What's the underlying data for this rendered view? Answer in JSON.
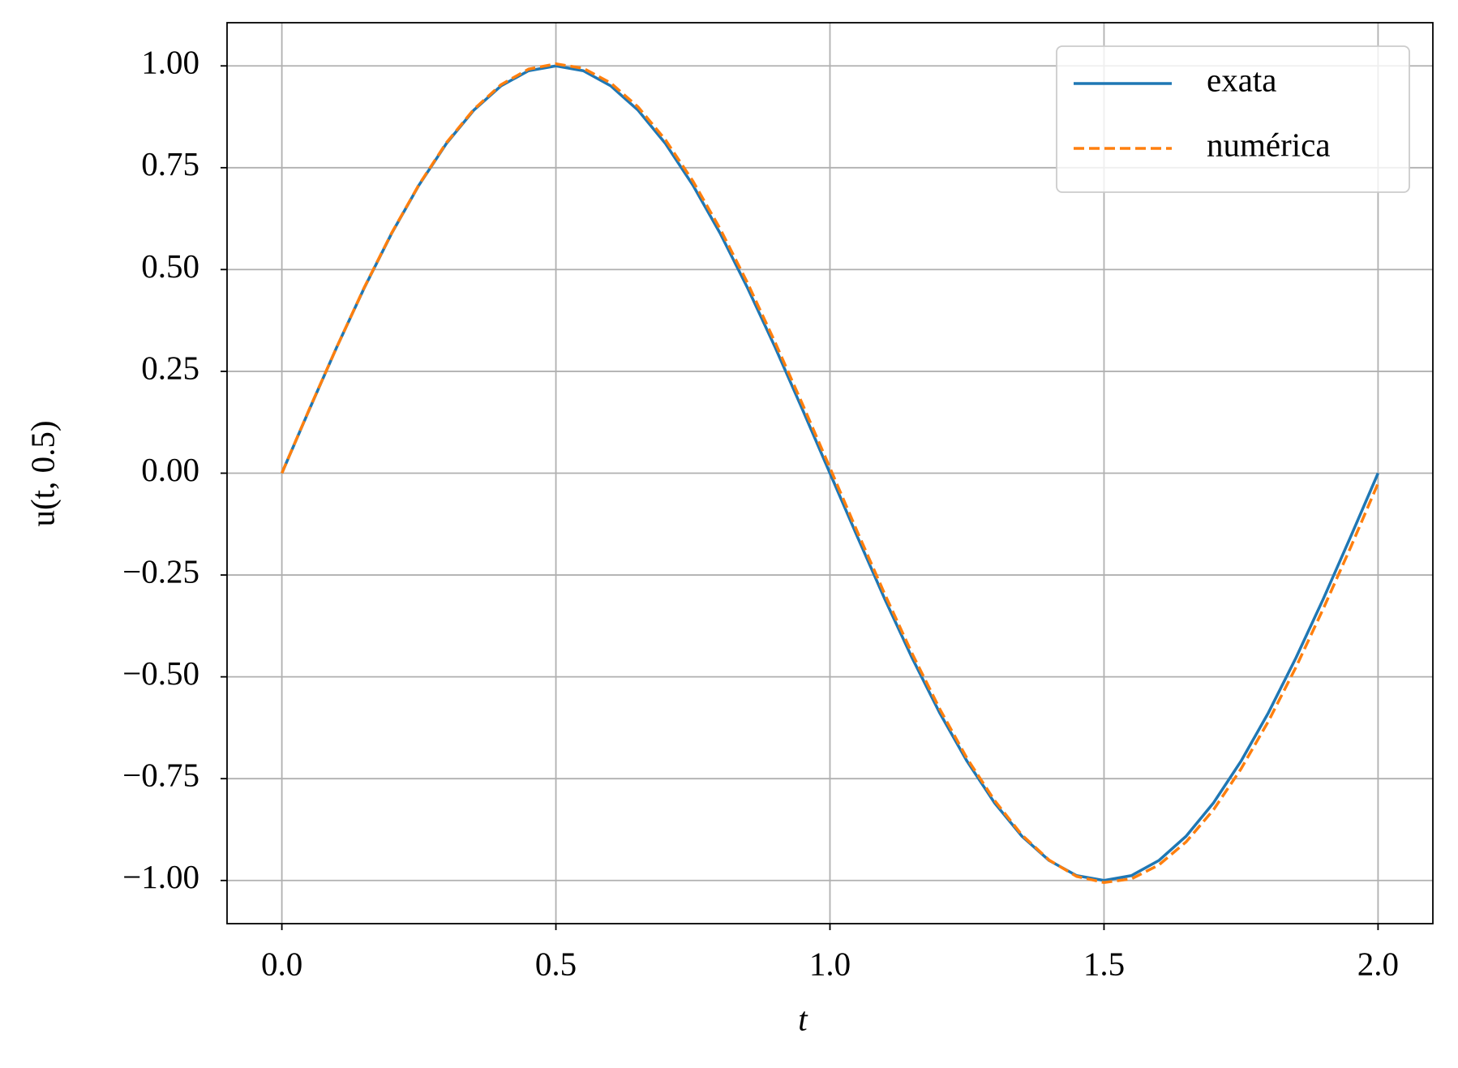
{
  "chart_data": {
    "type": "line",
    "xlabel": "t",
    "ylabel": "u(t, 0.5)",
    "x": [
      0,
      0.05,
      0.1,
      0.15,
      0.2,
      0.25,
      0.3,
      0.35,
      0.4,
      0.45,
      0.5,
      0.55,
      0.6,
      0.65,
      0.7,
      0.75,
      0.8,
      0.85,
      0.9,
      0.95,
      1.0,
      1.05,
      1.1,
      1.15,
      1.2,
      1.25,
      1.3,
      1.35,
      1.4,
      1.45,
      1.5,
      1.55,
      1.6,
      1.65,
      1.7,
      1.75,
      1.8,
      1.85,
      1.9,
      1.95,
      2.0
    ],
    "series": [
      {
        "name": "exata",
        "color": "#1f77b4",
        "dash": false,
        "values": [
          0,
          0.156,
          0.309,
          0.454,
          0.588,
          0.707,
          0.809,
          0.891,
          0.951,
          0.988,
          1.0,
          0.988,
          0.951,
          0.891,
          0.809,
          0.707,
          0.588,
          0.454,
          0.309,
          0.156,
          0,
          -0.156,
          -0.309,
          -0.454,
          -0.588,
          -0.707,
          -0.809,
          -0.891,
          -0.951,
          -0.988,
          -1.0,
          -0.988,
          -0.951,
          -0.891,
          -0.809,
          -0.707,
          -0.588,
          -0.454,
          -0.309,
          -0.156,
          0
        ]
      },
      {
        "name": "numérica",
        "color": "#ff7f0e",
        "dash": true,
        "values": [
          0,
          0.157,
          0.309,
          0.455,
          0.589,
          0.708,
          0.811,
          0.893,
          0.954,
          0.992,
          1.005,
          0.994,
          0.958,
          0.899,
          0.818,
          0.717,
          0.599,
          0.466,
          0.321,
          0.169,
          0.013,
          -0.144,
          -0.297,
          -0.443,
          -0.578,
          -0.7,
          -0.803,
          -0.888,
          -0.95,
          -0.99,
          -1.005,
          -0.996,
          -0.962,
          -0.905,
          -0.826,
          -0.726,
          -0.609,
          -0.477,
          -0.333,
          -0.182,
          -0.025
        ]
      }
    ],
    "xlim": [
      -0.1,
      2.1
    ],
    "ylim": [
      -1.106,
      1.106
    ],
    "xticks": [
      {
        "value": 0,
        "label": "0.0"
      },
      {
        "value": 0.5,
        "label": "0.5"
      },
      {
        "value": 1,
        "label": "1.0"
      },
      {
        "value": 1.5,
        "label": "1.5"
      },
      {
        "value": 2,
        "label": "2.0"
      }
    ],
    "yticks": [
      {
        "value": -1,
        "label": "−1.00"
      },
      {
        "value": -0.75,
        "label": "−0.75"
      },
      {
        "value": -0.5,
        "label": "−0.50"
      },
      {
        "value": -0.25,
        "label": "−0.25"
      },
      {
        "value": 0,
        "label": "0.00"
      },
      {
        "value": 0.25,
        "label": "0.25"
      },
      {
        "value": 0.5,
        "label": "0.50"
      },
      {
        "value": 0.75,
        "label": "0.75"
      },
      {
        "value": 1,
        "label": "1.00"
      }
    ],
    "grid": true,
    "legend": "upper right"
  }
}
